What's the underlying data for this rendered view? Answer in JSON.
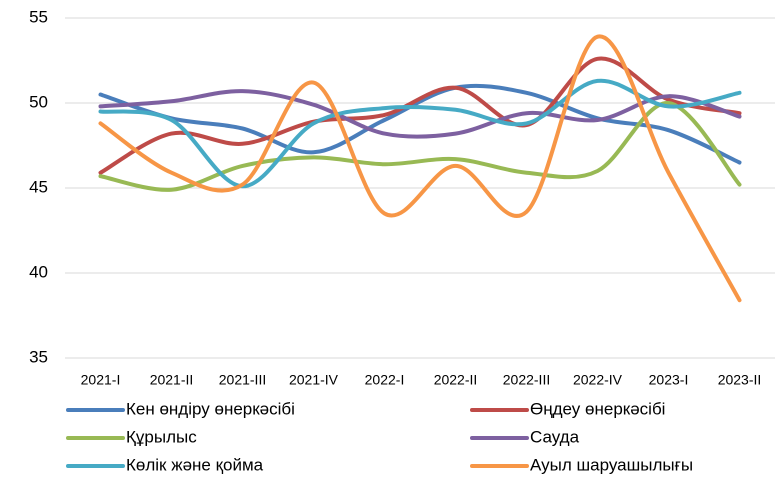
{
  "chart_data": {
    "type": "line",
    "categories": [
      "2021-I",
      "2021-II",
      "2021-III",
      "2021-IV",
      "2022-I",
      "2022-II",
      "2022-III",
      "2022-IV",
      "2023-I",
      "2023-II"
    ],
    "series": [
      {
        "name": "Кен өндіру өнеркәсібі",
        "color": "#4a7ebb",
        "values": [
          50.5,
          49.1,
          48.5,
          47.1,
          49.0,
          50.9,
          50.6,
          49.1,
          48.4,
          46.5
        ]
      },
      {
        "name": "Өңдеу өнеркәсібі",
        "color": "#be4b48",
        "values": [
          45.9,
          48.2,
          47.6,
          48.9,
          49.3,
          50.9,
          48.7,
          52.6,
          50.2,
          49.4
        ]
      },
      {
        "name": "Құрылыс",
        "color": "#98b954",
        "values": [
          45.7,
          44.9,
          46.3,
          46.8,
          46.4,
          46.7,
          45.9,
          46.0,
          50.0,
          45.2
        ]
      },
      {
        "name": "Сауда",
        "color": "#7d60a0",
        "values": [
          49.8,
          50.1,
          50.7,
          49.9,
          48.2,
          48.2,
          49.4,
          49.0,
          50.4,
          49.2
        ]
      },
      {
        "name": "Көлік және қойма",
        "color": "#46aac5",
        "values": [
          49.5,
          49.0,
          45.1,
          48.8,
          49.7,
          49.6,
          48.8,
          51.3,
          49.8,
          50.6
        ]
      },
      {
        "name": "Ауыл шаруашылығы",
        "color": "#f79646",
        "values": [
          48.8,
          45.9,
          45.2,
          51.2,
          43.5,
          46.3,
          43.6,
          53.9,
          45.9,
          38.4
        ]
      }
    ],
    "ylim": [
      35,
      55
    ],
    "yticks": [
      35,
      40,
      45,
      50,
      55
    ],
    "grid": true,
    "smooth": true,
    "legend": "bottom"
  }
}
